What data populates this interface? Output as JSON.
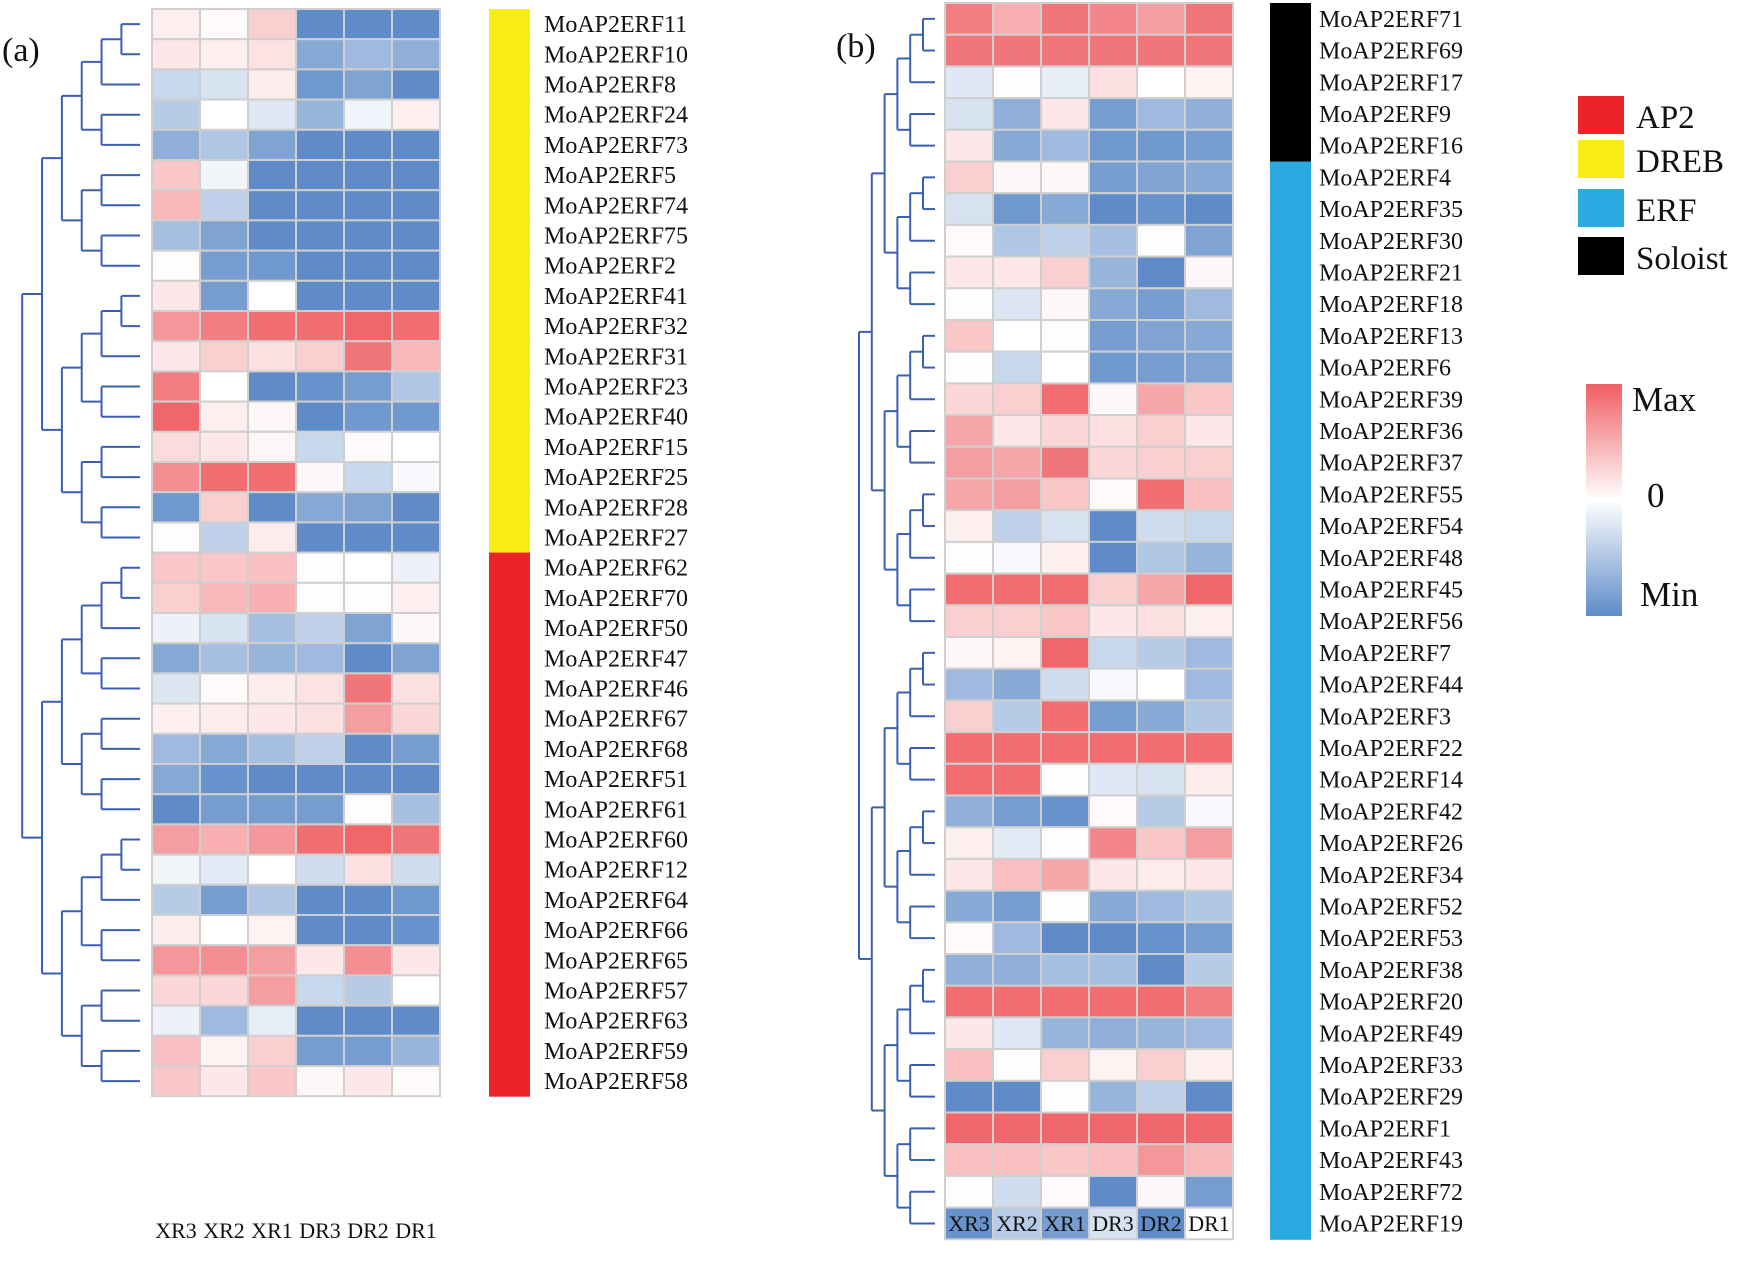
{
  "chart_data": [
    {
      "type": "heatmap",
      "panel_label": "(a)",
      "columns": [
        "XR3",
        "XR2",
        "XR1",
        "DR3",
        "DR2",
        "DR1"
      ],
      "value_scale": "row-normalized expression, -1 (Min) to 1 (Max)",
      "rows": [
        {
          "gene": "MoAP2ERF11",
          "group": "DREB",
          "values": [
            0.1,
            0.03,
            0.3,
            -1,
            -1,
            -1
          ]
        },
        {
          "gene": "MoAP2ERF10",
          "group": "DREB",
          "values": [
            0.15,
            0.1,
            0.18,
            -0.75,
            -0.6,
            -0.7
          ]
        },
        {
          "gene": "MoAP2ERF8",
          "group": "DREB",
          "values": [
            -0.35,
            -0.25,
            0.12,
            -0.9,
            -0.8,
            -1
          ]
        },
        {
          "gene": "MoAP2ERF24",
          "group": "DREB",
          "values": [
            -0.45,
            0,
            -0.2,
            -0.65,
            -0.1,
            0.1
          ]
        },
        {
          "gene": "MoAP2ERF73",
          "group": "DREB",
          "values": [
            -0.7,
            -0.5,
            -0.8,
            -1,
            -1,
            -1
          ]
        },
        {
          "gene": "MoAP2ERF5",
          "group": "DREB",
          "values": [
            0.35,
            -0.08,
            -1,
            -1,
            -1,
            -1
          ]
        },
        {
          "gene": "MoAP2ERF74",
          "group": "DREB",
          "values": [
            0.45,
            -0.4,
            -1,
            -1,
            -1,
            -1
          ]
        },
        {
          "gene": "MoAP2ERF75",
          "group": "DREB",
          "values": [
            -0.55,
            -0.8,
            -1,
            -1,
            -1,
            -1
          ]
        },
        {
          "gene": "MoAP2ERF2",
          "group": "DREB",
          "values": [
            0.02,
            -0.85,
            -0.9,
            -1,
            -1,
            -1
          ]
        },
        {
          "gene": "MoAP2ERF41",
          "group": "DREB",
          "values": [
            0.15,
            -0.85,
            0,
            -1,
            -1,
            -1
          ]
        },
        {
          "gene": "MoAP2ERF32",
          "group": "DREB",
          "values": [
            0.65,
            0.8,
            0.9,
            0.9,
            0.95,
            0.9
          ]
        },
        {
          "gene": "MoAP2ERF31",
          "group": "DREB",
          "values": [
            0.15,
            0.3,
            0.2,
            0.3,
            0.85,
            0.45
          ]
        },
        {
          "gene": "MoAP2ERF23",
          "group": "DREB",
          "values": [
            0.8,
            0,
            -1,
            -0.95,
            -0.85,
            -0.5
          ]
        },
        {
          "gene": "MoAP2ERF40",
          "group": "DREB",
          "values": [
            0.95,
            0.1,
            0.05,
            -1,
            -0.9,
            -0.9
          ]
        },
        {
          "gene": "MoAP2ERF15",
          "group": "DREB",
          "values": [
            0.22,
            0.15,
            0.05,
            -0.35,
            0.03,
            0
          ]
        },
        {
          "gene": "MoAP2ERF25",
          "group": "DREB",
          "values": [
            0.7,
            0.9,
            0.9,
            0.05,
            -0.35,
            -0.05
          ]
        },
        {
          "gene": "MoAP2ERF28",
          "group": "DREB",
          "values": [
            -0.9,
            0.3,
            -1,
            -0.75,
            -0.8,
            -1
          ]
        },
        {
          "gene": "MoAP2ERF27",
          "group": "DREB",
          "values": [
            0.02,
            -0.4,
            0.12,
            -1,
            -1,
            -1
          ]
        },
        {
          "gene": "MoAP2ERF62",
          "group": "AP2",
          "values": [
            0.35,
            0.35,
            0.4,
            0.02,
            0,
            -0.12
          ]
        },
        {
          "gene": "MoAP2ERF70",
          "group": "AP2",
          "values": [
            0.3,
            0.45,
            0.5,
            0.02,
            0.02,
            0.1
          ]
        },
        {
          "gene": "MoAP2ERF50",
          "group": "AP2",
          "values": [
            -0.12,
            -0.25,
            -0.55,
            -0.4,
            -0.8,
            0.05
          ]
        },
        {
          "gene": "MoAP2ERF47",
          "group": "AP2",
          "values": [
            -0.75,
            -0.55,
            -0.65,
            -0.6,
            -1,
            -0.8
          ]
        },
        {
          "gene": "MoAP2ERF46",
          "group": "AP2",
          "values": [
            -0.22,
            0.03,
            0.12,
            0.18,
            0.85,
            0.2
          ]
        },
        {
          "gene": "MoAP2ERF67",
          "group": "AP2",
          "values": [
            0.1,
            0.12,
            0.15,
            0.2,
            0.6,
            0.25
          ]
        },
        {
          "gene": "MoAP2ERF68",
          "group": "AP2",
          "values": [
            -0.6,
            -0.75,
            -0.55,
            -0.4,
            -1,
            -0.85
          ]
        },
        {
          "gene": "MoAP2ERF51",
          "group": "AP2",
          "values": [
            -0.75,
            -0.95,
            -1,
            -1,
            -1,
            -1
          ]
        },
        {
          "gene": "MoAP2ERF61",
          "group": "AP2",
          "values": [
            -1,
            -0.85,
            -0.85,
            -0.85,
            0.02,
            -0.55
          ]
        },
        {
          "gene": "MoAP2ERF60",
          "group": "AP2",
          "values": [
            0.6,
            0.5,
            0.65,
            0.9,
            0.95,
            0.85
          ]
        },
        {
          "gene": "MoAP2ERF12",
          "group": "AP2",
          "values": [
            -0.08,
            -0.18,
            0,
            -0.3,
            0.2,
            -0.3
          ]
        },
        {
          "gene": "MoAP2ERF64",
          "group": "AP2",
          "values": [
            -0.45,
            -0.85,
            -0.5,
            -1,
            -1,
            -0.9
          ]
        },
        {
          "gene": "MoAP2ERF66",
          "group": "AP2",
          "values": [
            0.12,
            0,
            0.08,
            -1,
            -1,
            -0.95
          ]
        },
        {
          "gene": "MoAP2ERF65",
          "group": "AP2",
          "values": [
            0.65,
            0.7,
            0.6,
            0.15,
            0.7,
            0.15
          ]
        },
        {
          "gene": "MoAP2ERF57",
          "group": "AP2",
          "values": [
            0.25,
            0.25,
            0.6,
            -0.35,
            -0.45,
            0
          ]
        },
        {
          "gene": "MoAP2ERF63",
          "group": "AP2",
          "values": [
            -0.12,
            -0.6,
            -0.15,
            -1,
            -1,
            -1
          ]
        },
        {
          "gene": "MoAP2ERF59",
          "group": "AP2",
          "values": [
            0.4,
            0.08,
            0.3,
            -0.85,
            -0.85,
            -0.65
          ]
        },
        {
          "gene": "MoAP2ERF58",
          "group": "AP2",
          "values": [
            0.35,
            0.15,
            0.35,
            0.05,
            0.15,
            0.03
          ]
        }
      ]
    },
    {
      "type": "heatmap",
      "panel_label": "(b)",
      "columns": [
        "XR3",
        "XR2",
        "XR1",
        "DR3",
        "DR2",
        "DR1"
      ],
      "value_scale": "row-normalized expression, -1 (Min) to 1 (Max)",
      "rows": [
        {
          "gene": "MoAP2ERF71",
          "group": "Soloist",
          "values": [
            0.8,
            0.5,
            0.85,
            0.75,
            0.6,
            0.85
          ]
        },
        {
          "gene": "MoAP2ERF69",
          "group": "Soloist",
          "values": [
            0.85,
            0.85,
            0.85,
            0.85,
            0.85,
            0.85
          ]
        },
        {
          "gene": "MoAP2ERF17",
          "group": "Soloist",
          "values": [
            -0.2,
            0.02,
            -0.15,
            0.2,
            0,
            0.08
          ]
        },
        {
          "gene": "MoAP2ERF9",
          "group": "Soloist",
          "values": [
            -0.25,
            -0.7,
            0.15,
            -0.85,
            -0.6,
            -0.7
          ]
        },
        {
          "gene": "MoAP2ERF16",
          "group": "Soloist",
          "values": [
            0.15,
            -0.75,
            -0.6,
            -0.9,
            -0.9,
            -0.85
          ]
        },
        {
          "gene": "MoAP2ERF4",
          "group": "ERF",
          "values": [
            0.3,
            0.05,
            0.05,
            -0.85,
            -0.8,
            -0.75
          ]
        },
        {
          "gene": "MoAP2ERF35",
          "group": "ERF",
          "values": [
            -0.25,
            -0.9,
            -0.75,
            -1,
            -0.95,
            -1
          ]
        },
        {
          "gene": "MoAP2ERF30",
          "group": "ERF",
          "values": [
            0.03,
            -0.5,
            -0.4,
            -0.55,
            0.02,
            -0.8
          ]
        },
        {
          "gene": "MoAP2ERF21",
          "group": "ERF",
          "values": [
            0.15,
            0.15,
            0.3,
            -0.65,
            -1,
            0.05
          ]
        },
        {
          "gene": "MoAP2ERF18",
          "group": "ERF",
          "values": [
            0.02,
            -0.22,
            0.05,
            -0.75,
            -0.85,
            -0.6
          ]
        },
        {
          "gene": "MoAP2ERF13",
          "group": "ERF",
          "values": [
            0.35,
            0,
            0.02,
            -0.85,
            -0.8,
            -0.75
          ]
        },
        {
          "gene": "MoAP2ERF6",
          "group": "ERF",
          "values": [
            0.02,
            -0.35,
            0,
            -0.9,
            -0.85,
            -0.8
          ]
        },
        {
          "gene": "MoAP2ERF39",
          "group": "ERF",
          "values": [
            0.25,
            0.3,
            0.9,
            0.05,
            0.55,
            0.35
          ]
        },
        {
          "gene": "MoAP2ERF36",
          "group": "ERF",
          "values": [
            0.55,
            0.15,
            0.25,
            0.2,
            0.3,
            0.15
          ]
        },
        {
          "gene": "MoAP2ERF37",
          "group": "ERF",
          "values": [
            0.6,
            0.55,
            0.85,
            0.25,
            0.3,
            0.3
          ]
        },
        {
          "gene": "MoAP2ERF55",
          "group": "ERF",
          "values": [
            0.55,
            0.6,
            0.35,
            0.03,
            0.9,
            0.4
          ]
        },
        {
          "gene": "MoAP2ERF54",
          "group": "ERF",
          "values": [
            0.1,
            -0.4,
            -0.25,
            -1,
            -0.3,
            -0.35
          ]
        },
        {
          "gene": "MoAP2ERF48",
          "group": "ERF",
          "values": [
            0.02,
            -0.05,
            0.1,
            -1,
            -0.5,
            -0.65
          ]
        },
        {
          "gene": "MoAP2ERF45",
          "group": "ERF",
          "values": [
            0.9,
            0.9,
            0.9,
            0.3,
            0.55,
            0.95
          ]
        },
        {
          "gene": "MoAP2ERF56",
          "group": "ERF",
          "values": [
            0.3,
            0.3,
            0.35,
            0.15,
            0.2,
            0.1
          ]
        },
        {
          "gene": "MoAP2ERF7",
          "group": "ERF",
          "values": [
            0.05,
            0.08,
            0.95,
            -0.35,
            -0.45,
            -0.6
          ]
        },
        {
          "gene": "MoAP2ERF44",
          "group": "ERF",
          "values": [
            -0.6,
            -0.75,
            -0.3,
            -0.05,
            0,
            -0.6
          ]
        },
        {
          "gene": "MoAP2ERF3",
          "group": "ERF",
          "values": [
            0.3,
            -0.45,
            0.9,
            -0.85,
            -0.75,
            -0.5
          ]
        },
        {
          "gene": "MoAP2ERF22",
          "group": "ERF",
          "values": [
            0.9,
            0.9,
            0.9,
            0.9,
            0.9,
            0.9
          ]
        },
        {
          "gene": "MoAP2ERF14",
          "group": "ERF",
          "values": [
            0.9,
            0.9,
            0.02,
            -0.2,
            -0.25,
            0.12
          ]
        },
        {
          "gene": "MoAP2ERF42",
          "group": "ERF",
          "values": [
            -0.7,
            -0.85,
            -0.95,
            0.03,
            -0.45,
            -0.05
          ]
        },
        {
          "gene": "MoAP2ERF26",
          "group": "ERF",
          "values": [
            0.1,
            -0.18,
            0.02,
            0.75,
            0.35,
            0.6
          ]
        },
        {
          "gene": "MoAP2ERF34",
          "group": "ERF",
          "values": [
            0.15,
            0.4,
            0.55,
            0.15,
            0.12,
            0.15
          ]
        },
        {
          "gene": "MoAP2ERF52",
          "group": "ERF",
          "values": [
            -0.75,
            -0.85,
            0.02,
            -0.75,
            -0.6,
            -0.5
          ]
        },
        {
          "gene": "MoAP2ERF53",
          "group": "ERF",
          "values": [
            0.03,
            -0.6,
            -1,
            -1,
            -0.95,
            -0.85
          ]
        },
        {
          "gene": "MoAP2ERF38",
          "group": "ERF",
          "values": [
            -0.7,
            -0.7,
            -0.55,
            -0.55,
            -1,
            -0.45
          ]
        },
        {
          "gene": "MoAP2ERF20",
          "group": "ERF",
          "values": [
            0.9,
            0.9,
            0.9,
            0.9,
            0.9,
            0.8
          ]
        },
        {
          "gene": "MoAP2ERF49",
          "group": "ERF",
          "values": [
            0.15,
            -0.2,
            -0.65,
            -0.7,
            -0.65,
            -0.6
          ]
        },
        {
          "gene": "MoAP2ERF33",
          "group": "ERF",
          "values": [
            0.4,
            0.02,
            0.3,
            0.08,
            0.3,
            0.1
          ]
        },
        {
          "gene": "MoAP2ERF29",
          "group": "ERF",
          "values": [
            -1,
            -1,
            0.02,
            -0.65,
            -0.4,
            -1
          ]
        },
        {
          "gene": "MoAP2ERF1",
          "group": "ERF",
          "values": [
            0.95,
            0.95,
            0.95,
            0.95,
            0.95,
            0.95
          ]
        },
        {
          "gene": "MoAP2ERF43",
          "group": "ERF",
          "values": [
            0.4,
            0.4,
            0.35,
            0.4,
            0.65,
            0.45
          ]
        },
        {
          "gene": "MoAP2ERF72",
          "group": "ERF",
          "values": [
            0.02,
            -0.3,
            0.03,
            -1,
            0.05,
            -0.85
          ]
        },
        {
          "gene": "MoAP2ERF19",
          "group": "ERF",
          "values": [
            -0.95,
            -0.45,
            -0.85,
            -0.25,
            -1,
            0.02
          ]
        }
      ]
    }
  ],
  "legend": {
    "groups": [
      {
        "label": "AP2",
        "color": "#ec2327"
      },
      {
        "label": "DREB",
        "color": "#f7ec13"
      },
      {
        "label": "ERF",
        "color": "#29abe2"
      },
      {
        "label": "Soloist",
        "color": "#000000"
      }
    ],
    "scale": {
      "max_label": "Max",
      "mid_label": "0",
      "min_label": "Min"
    }
  },
  "colors": {
    "high": "#ef5e63",
    "mid": "#ffffff",
    "low": "#5f8cc8",
    "grid": "#cfcfcf",
    "tree": "#3a5fb0"
  }
}
